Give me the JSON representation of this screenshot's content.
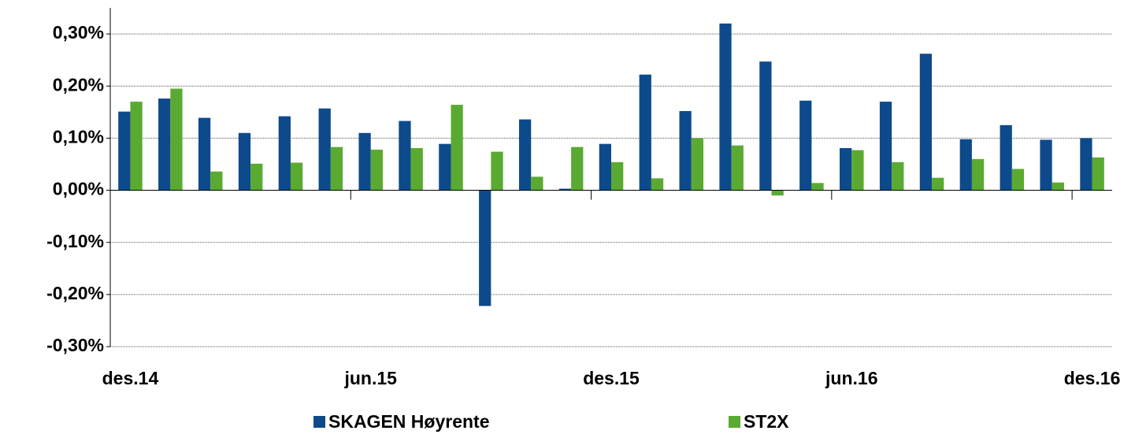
{
  "chart_data": {
    "type": "bar",
    "categories": [
      "des.14",
      null,
      null,
      null,
      null,
      null,
      "jun.15",
      null,
      null,
      null,
      null,
      null,
      "des.15",
      null,
      null,
      null,
      null,
      null,
      "jun.16",
      null,
      null,
      null,
      null,
      null,
      "des.16"
    ],
    "series": [
      {
        "name": "SKAGEN Høyrente",
        "color": "#0d4a8c",
        "values": [
          0.151,
          0.176,
          0.139,
          0.11,
          0.142,
          0.157,
          0.11,
          0.133,
          0.089,
          -0.222,
          0.136,
          0.003,
          0.089,
          0.222,
          0.152,
          0.32,
          0.247,
          0.172,
          0.081,
          0.17,
          0.262,
          0.098,
          0.125,
          0.097,
          0.1
        ]
      },
      {
        "name": "ST2X",
        "color": "#5aaa32",
        "values": [
          0.17,
          0.195,
          0.036,
          0.051,
          0.053,
          0.083,
          0.078,
          0.081,
          0.164,
          0.074,
          0.026,
          0.083,
          0.054,
          0.023,
          0.1,
          0.086,
          -0.01,
          0.014,
          0.077,
          0.054,
          0.024,
          0.06,
          0.041,
          0.015,
          0.063
        ]
      }
    ],
    "ylim": [
      -0.3,
      0.35
    ],
    "yticks": [
      {
        "value": -0.3,
        "label": "-0,30%"
      },
      {
        "value": -0.2,
        "label": "-0,20%"
      },
      {
        "value": -0.1,
        "label": "-0,10%"
      },
      {
        "value": 0,
        "label": "0,00%"
      },
      {
        "value": 0.1,
        "label": "0,10%"
      },
      {
        "value": 0.2,
        "label": "0,20%"
      },
      {
        "value": 0.3,
        "label": "0,30%"
      }
    ],
    "grid": true,
    "legend": "bottom"
  }
}
